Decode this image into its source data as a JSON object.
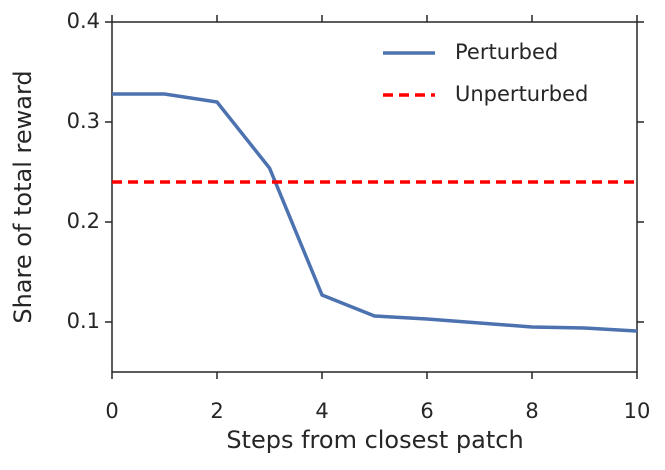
{
  "chart_data": {
    "type": "line",
    "x_label": "Steps from closest patch",
    "y_label": "Share of total reward",
    "x": [
      0,
      1,
      2,
      3,
      4,
      5,
      6,
      7,
      8,
      9,
      10
    ],
    "series": [
      {
        "name": "Perturbed",
        "color": "#4c72b0",
        "dash": "solid",
        "values": [
          0.328,
          0.328,
          0.32,
          0.254,
          0.127,
          0.106,
          0.103,
          0.099,
          0.095,
          0.094,
          0.091
        ]
      },
      {
        "name": "Unperturbed",
        "color": "#ff0000",
        "dash": "dashed",
        "values": [
          0.24,
          0.24,
          0.24,
          0.24,
          0.24,
          0.24,
          0.24,
          0.24,
          0.24,
          0.24,
          0.24
        ]
      }
    ],
    "xlim": [
      0,
      10
    ],
    "xticks": [
      0,
      2,
      4,
      6,
      8,
      10
    ],
    "ylim": [
      0.05,
      0.4
    ],
    "yticks": [
      0.1,
      0.2,
      0.3,
      0.4
    ],
    "grid": false,
    "legend": "upper right"
  }
}
